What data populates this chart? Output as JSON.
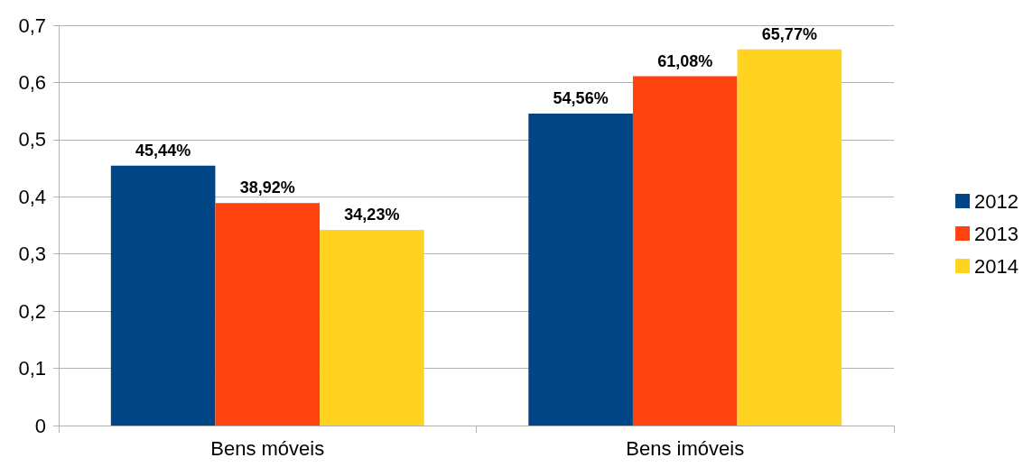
{
  "chart_data": {
    "type": "bar",
    "categories": [
      "Bens móveis",
      "Bens imóveis"
    ],
    "series": [
      {
        "name": "2012",
        "color": "#004586",
        "values": [
          0.4544,
          0.5456
        ],
        "value_labels": [
          "45,44%",
          "54,56%"
        ]
      },
      {
        "name": "2013",
        "color": "#ff420e",
        "values": [
          0.3892,
          0.6108
        ],
        "value_labels": [
          "38,92%",
          "61,08%"
        ]
      },
      {
        "name": "2014",
        "color": "#ffd320",
        "values": [
          0.3423,
          0.6577
        ],
        "value_labels": [
          "34,23%",
          "65,77%"
        ]
      }
    ],
    "ylim": [
      0,
      0.7
    ],
    "yticks": [
      0,
      {
        "value": 0.1,
        "label": "0,1"
      },
      {
        "value": 0.2,
        "label": "0,2"
      },
      {
        "value": 0.3,
        "label": "0,3"
      },
      {
        "value": 0.4,
        "label": "0,4"
      },
      {
        "value": 0.5,
        "label": "0,5"
      },
      {
        "value": 0.6,
        "label": "0,6"
      },
      {
        "value": 0.7,
        "label": "0,7"
      }
    ],
    "grid": true,
    "legend": "right"
  }
}
